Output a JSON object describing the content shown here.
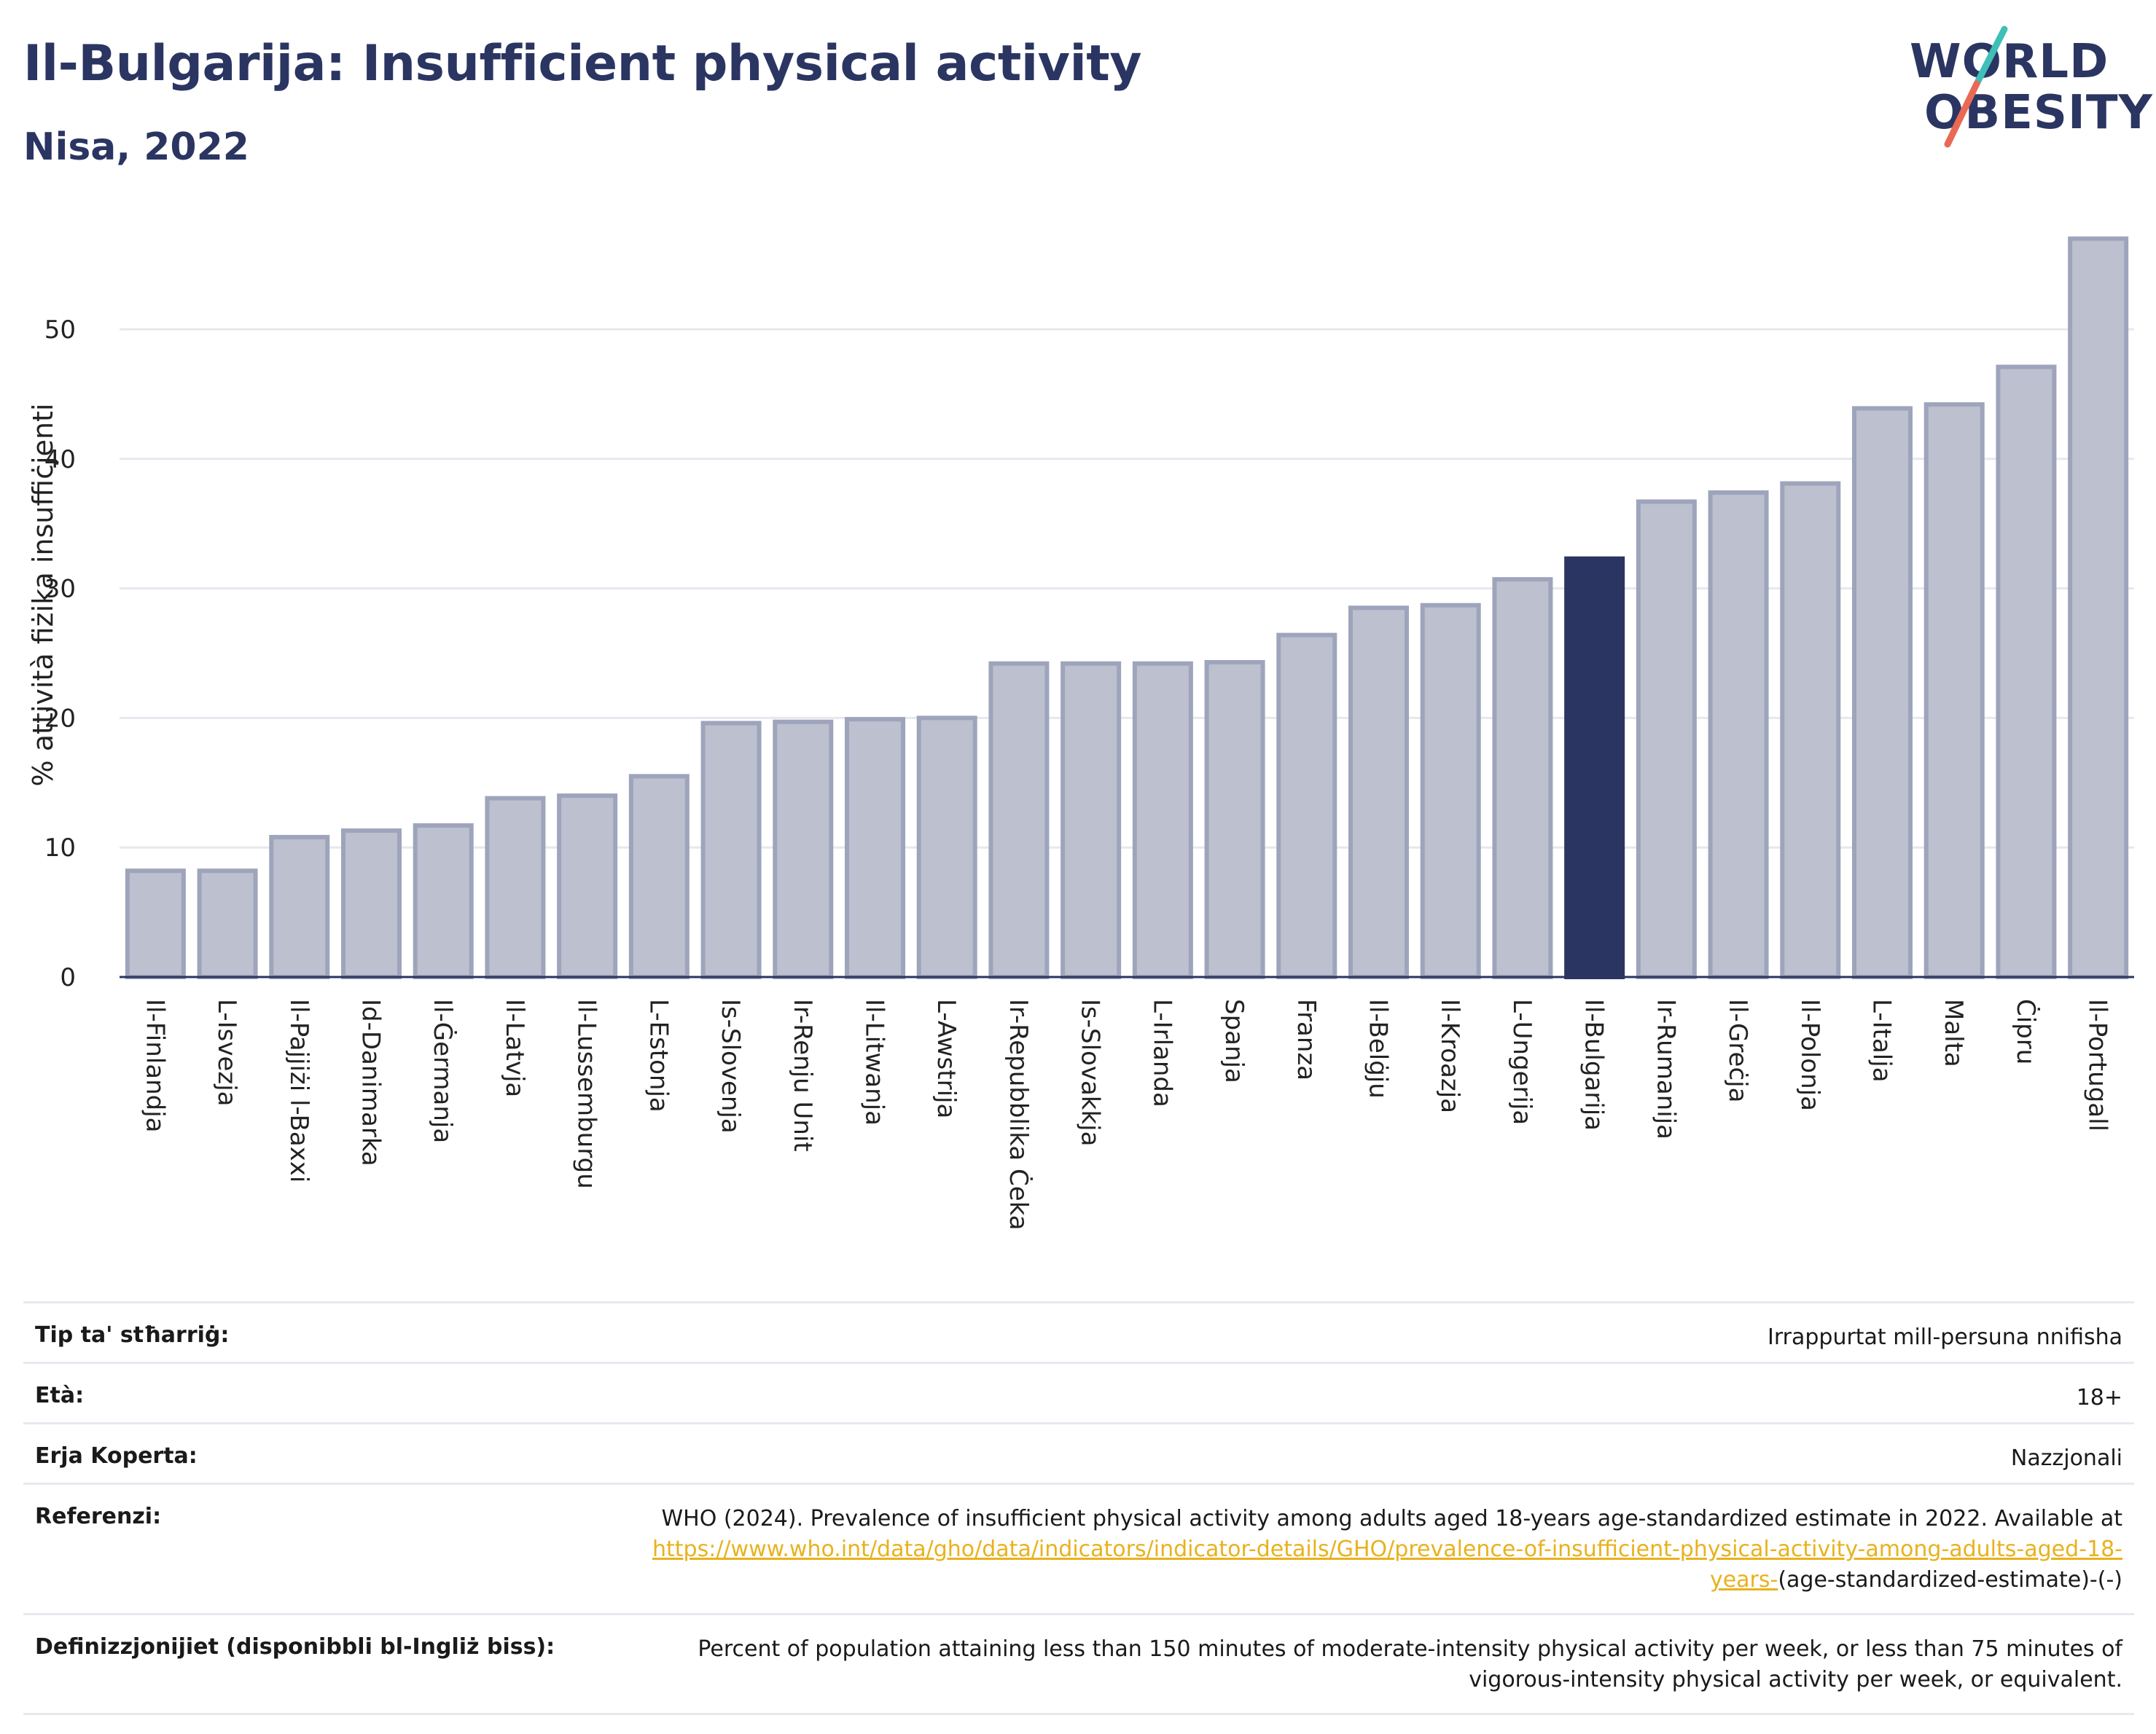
{
  "header": {
    "title": "Il-Bulgarija: Insufficient physical activity",
    "subtitle": "Nisa, 2022"
  },
  "logo": {
    "line1": "WORLD",
    "line2": "OBESITY",
    "colors": {
      "text": "#2b3562",
      "slash_top": "#3fbfb8",
      "slash_bottom": "#e86a55"
    }
  },
  "chart_data": {
    "type": "bar",
    "ylabel": "% attività fiżika insuffiċjenti",
    "ylim": [
      0,
      58
    ],
    "yticks": [
      0,
      10,
      20,
      30,
      40,
      50
    ],
    "grid": true,
    "highlight": "Il-Bulgarija",
    "colors": {
      "bar": "#bcc0cf",
      "bar_border": "#9ea4bb",
      "highlight": "#2b3562"
    },
    "categories": [
      "Il-Finlandja",
      "L-Isvezja",
      "Il-Pajjiżi l-Baxxi",
      "Id-Danimarka",
      "Il-Ġermanja",
      "Il-Latvja",
      "Il-Lussemburgu",
      "L-Estonja",
      "Is-Slovenja",
      "Ir-Renju Unit",
      "Il-Litwanja",
      "L-Awstrija",
      "Ir-Repubblika Ċeka",
      "Is-Slovakkja",
      "L-Irlanda",
      "Spanja",
      "Franza",
      "Il-Belġju",
      "Il-Kroazja",
      "L-Ungerija",
      "Il-Bulgarija",
      "Ir-Rumanija",
      "Il-Greċja",
      "Il-Polonja",
      "L-Italja",
      "Malta",
      "Ċipru",
      "Il-Portugall"
    ],
    "values": [
      8.2,
      8.2,
      10.8,
      11.3,
      11.7,
      13.8,
      14.0,
      15.5,
      19.6,
      19.7,
      19.9,
      20.0,
      24.2,
      24.2,
      24.2,
      24.3,
      26.4,
      28.5,
      28.7,
      30.7,
      32.3,
      36.7,
      37.4,
      38.1,
      43.9,
      44.2,
      47.1,
      57.0
    ]
  },
  "info": {
    "rows": [
      {
        "key": "Tip ta' stħarriġ:",
        "value": "Irrappurtat mill-persuna nnifisha"
      },
      {
        "key": "Età:",
        "value": "18+"
      },
      {
        "key": "Erja Koperta:",
        "value": "Nazzjonali"
      },
      {
        "key": "Referenzi:",
        "value_pre": "WHO (2024). Prevalence of insufficient physical activity among adults aged 18-years age-standardized estimate in 2022. Available at",
        "link": "https://www.who.int/data/gho/data/indicators/indicator-details/GHO/prevalence-of-insufficient-physical-activity-among-adults-aged-18-years-",
        "value_post": "(age-standardized-estimate)-(-)"
      },
      {
        "key": "Definizzjonijiet (disponibbli bl-Ingliż biss):",
        "value": "Percent of population attaining less than 150 minutes of moderate-intensity physical activity per week, or less than 75 minutes of vigorous-intensity physical activity per week, or equivalent."
      }
    ]
  }
}
